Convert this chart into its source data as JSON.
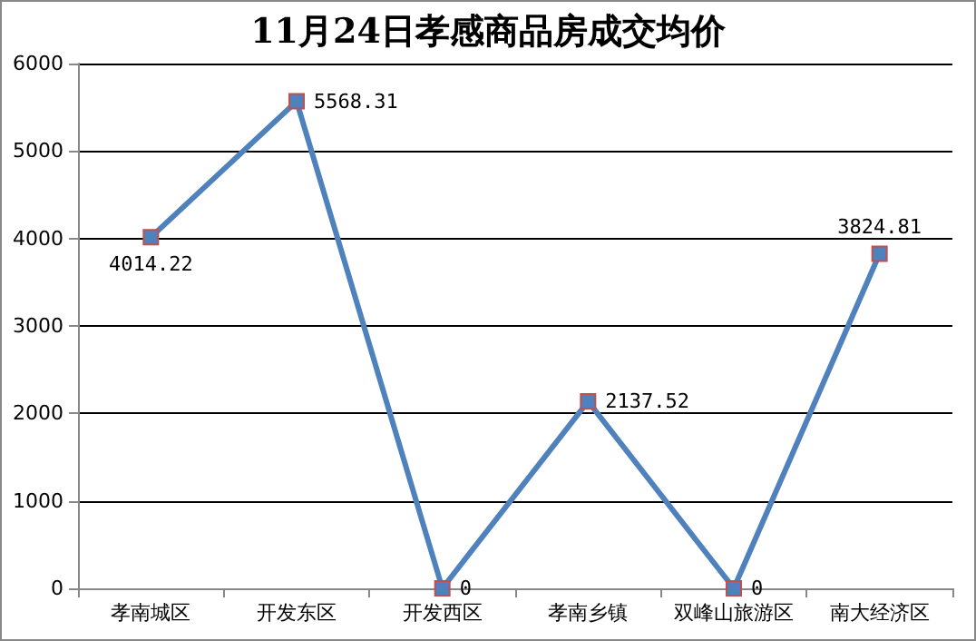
{
  "chart_data": {
    "type": "line",
    "title": "11月24日孝感商品房成交均价",
    "categories": [
      "孝南城区",
      "开发东区",
      "开发西区",
      "孝南乡镇",
      "双峰山旅游区",
      "南大经济区"
    ],
    "series": [
      {
        "color": "#4f81bd",
        "values": [
          4014.22,
          5568.31,
          0,
          2137.52,
          0,
          3824.81
        ]
      }
    ],
    "ylim": [
      0,
      6000
    ],
    "yticks": [
      0,
      1000,
      2000,
      3000,
      4000,
      5000,
      6000
    ],
    "grid": "y",
    "marker": "square",
    "data_labels": true
  }
}
